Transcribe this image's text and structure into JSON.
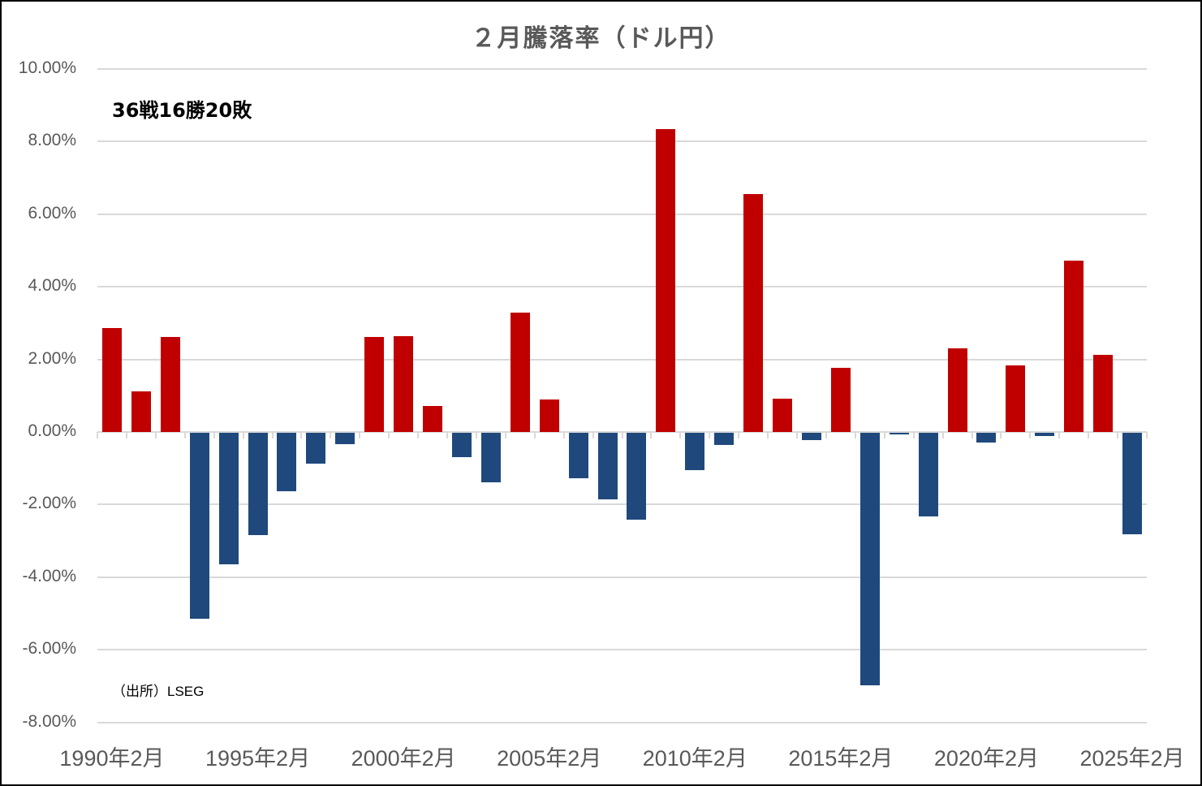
{
  "chart_data": {
    "type": "bar",
    "title": "２月騰落率（ドル円）",
    "xlabel": "",
    "ylabel": "",
    "ylim": [
      -8,
      10
    ],
    "yticks": [
      "10.00%",
      "8.00%",
      "6.00%",
      "4.00%",
      "2.00%",
      "0.00%",
      "-2.00%",
      "-4.00%",
      "-6.00%",
      "-8.00%"
    ],
    "ytick_values": [
      10,
      8,
      6,
      4,
      2,
      0,
      -2,
      -4,
      -6,
      -8
    ],
    "xtick_labels": [
      "1990年2月",
      "1995年2月",
      "2000年2月",
      "2005年2月",
      "2010年2月",
      "2015年2月",
      "2020年2月",
      "2025年2月"
    ],
    "grid": true,
    "legend": "none",
    "categories": [
      "1990年2月",
      "1991年2月",
      "1992年2月",
      "1993年2月",
      "1994年2月",
      "1995年2月",
      "1996年2月",
      "1997年2月",
      "1998年2月",
      "1999年2月",
      "2000年2月",
      "2001年2月",
      "2002年2月",
      "2003年2月",
      "2004年2月",
      "2005年2月",
      "2006年2月",
      "2007年2月",
      "2008年2月",
      "2009年2月",
      "2010年2月",
      "2011年2月",
      "2012年2月",
      "2013年2月",
      "2014年2月",
      "2015年2月",
      "2016年2月",
      "2017年2月",
      "2018年2月",
      "2019年2月",
      "2020年2月",
      "2021年2月",
      "2022年2月",
      "2023年2月",
      "2024年2月",
      "2025年2月"
    ],
    "values": [
      2.86,
      1.12,
      2.62,
      -5.12,
      -3.62,
      -2.82,
      -1.61,
      -0.85,
      -0.31,
      2.62,
      2.64,
      0.72,
      -0.67,
      -1.36,
      3.29,
      0.89,
      -1.25,
      -1.83,
      -2.39,
      8.34,
      -1.03,
      -0.34,
      6.55,
      0.92,
      -0.2,
      1.77,
      -6.96,
      -0.04,
      -2.3,
      2.3,
      -0.27,
      1.83,
      -0.09,
      4.72,
      2.13,
      -2.8
    ],
    "unit": "%",
    "colors": {
      "positive": "#c00000",
      "negative": "#1f497d"
    },
    "annotations": [
      "36戦16勝20敗",
      "（出所）LSEG"
    ]
  },
  "title": "２月騰落率（ドル円）",
  "record_text": "36戦16勝20敗",
  "source_text": "（出所）LSEG",
  "y_axis": {
    "labels": [
      "10.00%",
      "8.00%",
      "6.00%",
      "4.00%",
      "2.00%",
      "0.00%",
      "-2.00%",
      "-4.00%",
      "-6.00%",
      "-8.00%"
    ]
  },
  "x_axis": {
    "labels": [
      "1990年2月",
      "1995年2月",
      "2000年2月",
      "2005年2月",
      "2010年2月",
      "2015年2月",
      "2020年2月",
      "2025年2月"
    ]
  }
}
